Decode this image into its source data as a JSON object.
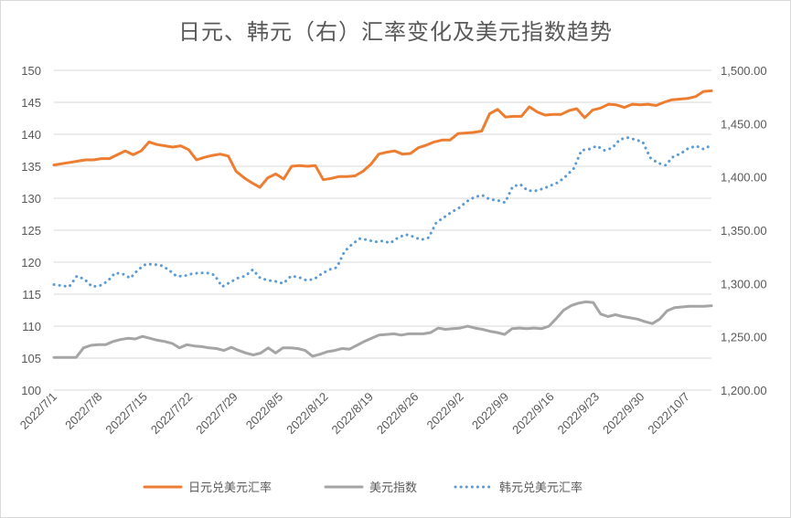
{
  "chart_data": {
    "type": "line",
    "title": "日元、韩元（右）汇率变化及美元指数趋势",
    "left_axis": {
      "ylim": [
        100,
        150
      ],
      "ticks": [
        "100",
        "105",
        "110",
        "115",
        "120",
        "125",
        "130",
        "135",
        "140",
        "145",
        "150"
      ]
    },
    "right_axis": {
      "ylim": [
        1200,
        1500
      ],
      "ticks": [
        "1,200.00",
        "1,250.00",
        "1,300.00",
        "1,350.00",
        "1,400.00",
        "1,450.00",
        "1,500.00"
      ]
    },
    "x_tick_labels": [
      "2022/7/1",
      "2022/7/8",
      "2022/7/15",
      "2022/7/22",
      "2022/7/29",
      "2022/8/5",
      "2022/8/12",
      "2022/8/19",
      "2022/8/26",
      "2022/9/2",
      "2022/9/9",
      "2022/9/16",
      "2022/9/23",
      "2022/9/30",
      "2022/10/7"
    ],
    "grid": true,
    "legend_position": "bottom",
    "series": [
      {
        "name": "日元兑美元汇率",
        "axis": "left",
        "color": "#ed7d31",
        "style": "solid",
        "values": [
          135.2,
          135.4,
          135.6,
          135.8,
          136.0,
          136.0,
          136.2,
          136.2,
          136.8,
          137.4,
          136.8,
          137.4,
          138.8,
          138.4,
          138.2,
          138.0,
          138.2,
          137.6,
          136.0,
          136.4,
          136.7,
          136.9,
          136.6,
          134.2,
          133.2,
          132.4,
          131.7,
          133.2,
          133.8,
          133.0,
          135.0,
          135.1,
          135.0,
          135.1,
          132.9,
          133.1,
          133.4,
          133.4,
          133.5,
          134.2,
          135.3,
          136.9,
          137.2,
          137.4,
          136.9,
          137.0,
          137.9,
          138.3,
          138.8,
          139.1,
          139.1,
          140.1,
          140.2,
          140.3,
          140.5,
          143.2,
          143.9,
          142.7,
          142.8,
          142.8,
          144.3,
          143.5,
          143.0,
          143.1,
          143.1,
          143.7,
          144.0,
          142.6,
          143.8,
          144.1,
          144.7,
          144.6,
          144.2,
          144.7,
          144.6,
          144.7,
          144.5,
          145.0,
          145.4,
          145.5,
          145.6,
          145.9,
          146.7,
          146.8
        ]
      },
      {
        "name": "美元指数",
        "axis": "left",
        "color": "#a5a5a5",
        "style": "solid",
        "values": [
          105.1,
          105.1,
          105.1,
          105.1,
          106.6,
          107.0,
          107.1,
          107.1,
          107.6,
          107.9,
          108.1,
          108.0,
          108.4,
          108.1,
          107.8,
          107.6,
          107.3,
          106.6,
          107.1,
          106.9,
          106.8,
          106.6,
          106.5,
          106.2,
          106.7,
          106.2,
          105.8,
          105.5,
          105.8,
          106.6,
          105.8,
          106.6,
          106.6,
          106.5,
          106.2,
          105.3,
          105.6,
          106.0,
          106.2,
          106.5,
          106.4,
          107.0,
          107.6,
          108.1,
          108.6,
          108.7,
          108.8,
          108.6,
          108.8,
          108.8,
          108.8,
          109.0,
          109.7,
          109.5,
          109.6,
          109.7,
          110.0,
          109.7,
          109.5,
          109.2,
          109.0,
          108.7,
          109.6,
          109.7,
          109.6,
          109.7,
          109.6,
          110.0,
          111.2,
          112.5,
          113.2,
          113.6,
          113.8,
          113.7,
          111.9,
          111.5,
          111.8,
          111.5,
          111.3,
          111.1,
          110.7,
          110.4,
          111.1,
          112.4,
          112.9,
          113.0,
          113.1,
          113.1,
          113.1,
          113.2
        ]
      },
      {
        "name": "韩元兑美元汇率",
        "axis": "right",
        "color": "#5b9bd5",
        "style": "dotted",
        "values": [
          1299,
          1298,
          1297,
          1307,
          1304,
          1297,
          1298,
          1302,
          1310,
          1309,
          1305,
          1313,
          1318,
          1318,
          1317,
          1313,
          1307,
          1307,
          1309,
          1310,
          1310,
          1308,
          1297,
          1301,
          1305,
          1307,
          1313,
          1305,
          1303,
          1302,
          1300,
          1307,
          1306,
          1303,
          1304,
          1309,
          1313,
          1315,
          1330,
          1337,
          1342,
          1341,
          1339,
          1340,
          1338,
          1343,
          1346,
          1344,
          1341,
          1343,
          1357,
          1362,
          1367,
          1371,
          1377,
          1381,
          1383,
          1379,
          1378,
          1376,
          1391,
          1393,
          1387,
          1387,
          1389,
          1392,
          1395,
          1401,
          1408,
          1425,
          1426,
          1429,
          1425,
          1427,
          1435,
          1437,
          1435,
          1433,
          1418,
          1413,
          1411,
          1419,
          1422,
          1427,
          1429,
          1426,
          1430
        ]
      }
    ]
  }
}
